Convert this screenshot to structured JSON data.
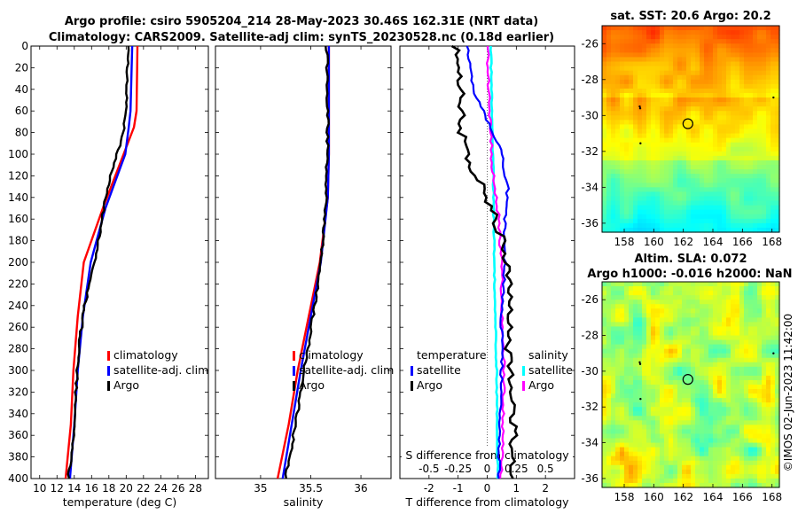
{
  "titles": {
    "line1": "Argo profile: csiro 5905204_214 28-May-2023 30.46S 162.31E (NRT data)",
    "line2": "Climatology: CARS2009. Satellite-adj clim: synTS_20230528.nc (0.18d earlier)",
    "sst": "sat. SST: 20.6 Argo: 20.2",
    "sla1": "Altim. SLA: 0.072",
    "sla2": "Argo h1000: -0.016 h2000: NaN",
    "stamp": "©IMOS 02-Jun-2023 11:42:00"
  },
  "colors": {
    "clim": "#ff0000",
    "sat": "#0000ff",
    "argo": "#000000",
    "sat_s": "#00ffff",
    "argo_s": "#ff00ff"
  },
  "chart_data": [
    {
      "type": "line",
      "name": "temperature-profile",
      "xlabel": "temperature (deg C)",
      "ylabel": "depth",
      "xlim": [
        9,
        29.5
      ],
      "ylim": [
        400,
        0
      ],
      "xticks": [
        10,
        12,
        14,
        16,
        18,
        20,
        22,
        24,
        26,
        28
      ],
      "yticks": [
        0,
        20,
        40,
        60,
        80,
        100,
        120,
        140,
        160,
        180,
        200,
        220,
        240,
        260,
        280,
        300,
        320,
        340,
        360,
        380,
        400
      ],
      "legend": [
        "climatology",
        "satellite-adj. clim",
        "Argo"
      ],
      "series": [
        {
          "name": "climatology",
          "depth": [
            0,
            60,
            75,
            100,
            150,
            200,
            250,
            300,
            350,
            400
          ],
          "values": [
            21.3,
            21.2,
            20.9,
            19.7,
            17.3,
            15.1,
            14.4,
            13.9,
            13.6,
            13.0
          ]
        },
        {
          "name": "satellite-adj. clim",
          "depth": [
            0,
            60,
            75,
            100,
            150,
            200,
            250,
            300,
            350,
            400
          ],
          "values": [
            20.7,
            20.5,
            20.3,
            19.9,
            17.6,
            15.9,
            15.0,
            14.4,
            14.0,
            13.5
          ]
        },
        {
          "name": "Argo",
          "depth": [
            0,
            40,
            80,
            110,
            140,
            170,
            200,
            240,
            280,
            320,
            360,
            400
          ],
          "values": [
            20.2,
            20.1,
            19.7,
            18.5,
            17.6,
            17.0,
            16.3,
            15.2,
            14.5,
            14.2,
            13.9,
            13.3
          ]
        }
      ]
    },
    {
      "type": "line",
      "name": "salinity-profile",
      "xlabel": "salinity",
      "xlim": [
        34.55,
        36.3
      ],
      "ylim": [
        400,
        0
      ],
      "xticks": [
        35,
        35.5,
        36
      ],
      "legend": [
        "climatology",
        "satellite-adj. clim",
        "Argo"
      ],
      "series": [
        {
          "name": "climatology",
          "depth": [
            0,
            100,
            140,
            200,
            250,
            300,
            350,
            400
          ],
          "values": [
            35.68,
            35.68,
            35.67,
            35.59,
            35.48,
            35.37,
            35.28,
            35.17
          ]
        },
        {
          "name": "satellite-adj. clim",
          "depth": [
            0,
            100,
            140,
            200,
            250,
            300,
            350,
            400
          ],
          "values": [
            35.68,
            35.68,
            35.67,
            35.6,
            35.5,
            35.4,
            35.31,
            35.22
          ]
        },
        {
          "name": "Argo",
          "depth": [
            0,
            60,
            120,
            160,
            200,
            240,
            280,
            320,
            360,
            400
          ],
          "values": [
            35.66,
            35.67,
            35.66,
            35.64,
            35.6,
            35.54,
            35.47,
            35.4,
            35.33,
            35.25
          ]
        }
      ]
    },
    {
      "type": "line",
      "name": "difference-profile",
      "xlabel": "T difference from climatology",
      "top_xlabel": "S difference from climatology",
      "xlim": [
        -3,
        3
      ],
      "ylim": [
        400,
        0
      ],
      "xticks": [
        -2,
        -1,
        0,
        1,
        2
      ],
      "top_xticks": [
        "-0.5",
        "-0.25",
        "0",
        "0.25",
        "0.5"
      ],
      "legend_t_title": "temperature",
      "legend_s_title": "salinity",
      "legend": [
        "satellite",
        "Argo",
        "satellite",
        "Argo"
      ],
      "series": [
        {
          "name": "T satellite",
          "depth": [
            0,
            40,
            80,
            100,
            130,
            160,
            200,
            250,
            300,
            350,
            400
          ],
          "values": [
            -0.7,
            -0.5,
            0.2,
            0.5,
            0.7,
            0.6,
            0.6,
            0.5,
            0.5,
            0.4,
            0.4
          ]
        },
        {
          "name": "T Argo",
          "depth": [
            0,
            40,
            80,
            110,
            140,
            170,
            200,
            240,
            280,
            320,
            360,
            400
          ],
          "values": [
            -1.1,
            -0.9,
            -0.9,
            -0.6,
            0.0,
            0.4,
            0.7,
            0.8,
            0.7,
            0.9,
            0.9,
            0.8
          ]
        },
        {
          "name": "S satellite",
          "depth": [
            0,
            100,
            200,
            300,
            400
          ],
          "values": [
            0.03,
            0.05,
            0.06,
            0.08,
            0.09
          ]
        },
        {
          "name": "S Argo",
          "depth": [
            0,
            60,
            120,
            160,
            200,
            240,
            280,
            320,
            360,
            400
          ],
          "values": [
            0.0,
            0.02,
            0.05,
            0.1,
            0.12,
            0.13,
            0.14,
            0.14,
            0.13,
            0.12
          ]
        }
      ]
    },
    {
      "type": "heatmap",
      "name": "sst-map",
      "title": "sat. SST: 20.6 Argo: 20.2",
      "xlim": [
        156.5,
        168.5
      ],
      "ylim": [
        -36.5,
        -25
      ],
      "xticks": [
        158,
        160,
        162,
        164,
        166,
        168
      ],
      "yticks": [
        -26,
        -28,
        -30,
        -32,
        -34,
        -36
      ],
      "marker": {
        "lon": 162.31,
        "lat": -30.46
      }
    },
    {
      "type": "heatmap",
      "name": "sla-map",
      "title": "Altim. SLA: 0.072",
      "subtitle": "Argo h1000: -0.016 h2000: NaN",
      "xlim": [
        156.5,
        168.5
      ],
      "ylim": [
        -36.5,
        -25
      ],
      "xticks": [
        158,
        160,
        162,
        164,
        166,
        168
      ],
      "yticks": [
        -26,
        -28,
        -30,
        -32,
        -34,
        -36
      ],
      "marker": {
        "lon": 162.31,
        "lat": -30.46
      }
    }
  ]
}
